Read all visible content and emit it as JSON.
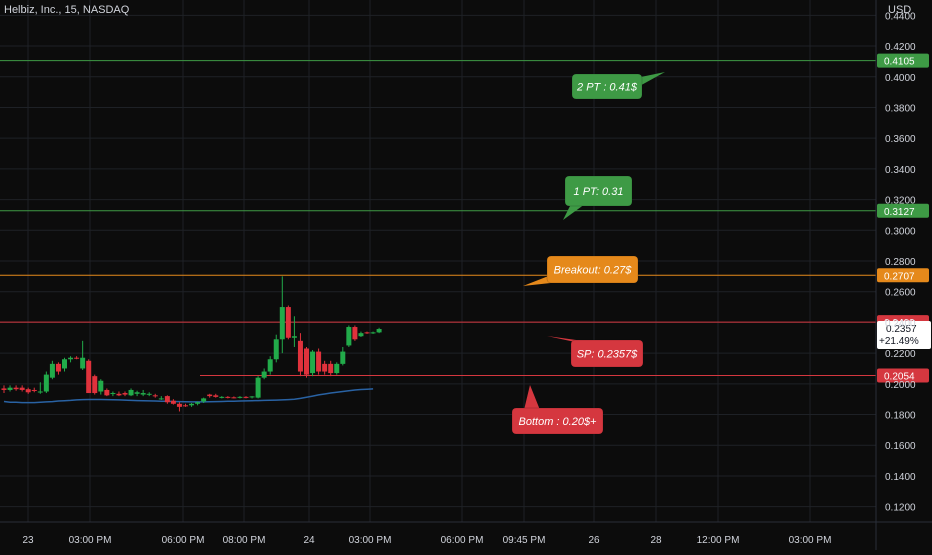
{
  "header": {
    "symbol": "Helbiz, Inc., 15, NASDAQ",
    "currency": "USD"
  },
  "colors": {
    "background": "#0c0c0c",
    "grid": "#1e2126",
    "up": "#22ab4a",
    "down": "#e0323c",
    "ma": "#2962a3",
    "green_line": "#3e9a45",
    "orange_line": "#e5891b",
    "red_line": "#d5373f",
    "text": "#d1d4dc"
  },
  "chart_data": {
    "type": "candlestick",
    "title": "Helbiz, Inc., 15, NASDAQ",
    "ylim": [
      0.11,
      0.45
    ],
    "grid": true,
    "y_ticks": [
      "0.4400",
      "0.4200",
      "0.4000",
      "0.3800",
      "0.3600",
      "0.3400",
      "0.3200",
      "0.3000",
      "0.2800",
      "0.2600",
      "0.2400",
      "0.2200",
      "0.2000",
      "0.1800",
      "0.1600",
      "0.1400",
      "0.1200"
    ],
    "x_ticks": [
      "23",
      "03:00 PM",
      "06:00 PM",
      "08:00 PM",
      "24",
      "03:00 PM",
      "06:00 PM",
      "09:45 PM",
      "26",
      "28",
      "12:00 PM",
      "03:00 PM"
    ],
    "candles": [
      {
        "o": 0.197,
        "h": 0.199,
        "l": 0.194,
        "c": 0.196
      },
      {
        "o": 0.196,
        "h": 0.199,
        "l": 0.195,
        "c": 0.1975
      },
      {
        "o": 0.1975,
        "h": 0.199,
        "l": 0.1955,
        "c": 0.1965
      },
      {
        "o": 0.1975,
        "h": 0.199,
        "l": 0.195,
        "c": 0.196
      },
      {
        "o": 0.1965,
        "h": 0.1975,
        "l": 0.1935,
        "c": 0.1945
      },
      {
        "o": 0.196,
        "h": 0.1975,
        "l": 0.1945,
        "c": 0.1955
      },
      {
        "o": 0.1945,
        "h": 0.201,
        "l": 0.1935,
        "c": 0.195
      },
      {
        "o": 0.195,
        "h": 0.208,
        "l": 0.194,
        "c": 0.206
      },
      {
        "o": 0.204,
        "h": 0.215,
        "l": 0.203,
        "c": 0.213
      },
      {
        "o": 0.213,
        "h": 0.214,
        "l": 0.206,
        "c": 0.208
      },
      {
        "o": 0.21,
        "h": 0.217,
        "l": 0.208,
        "c": 0.216
      },
      {
        "o": 0.216,
        "h": 0.218,
        "l": 0.214,
        "c": 0.217
      },
      {
        "o": 0.217,
        "h": 0.218,
        "l": 0.216,
        "c": 0.2165
      },
      {
        "o": 0.21,
        "h": 0.228,
        "l": 0.209,
        "c": 0.217
      },
      {
        "o": 0.215,
        "h": 0.216,
        "l": 0.194,
        "c": 0.194
      },
      {
        "o": 0.205,
        "h": 0.206,
        "l": 0.193,
        "c": 0.194
      },
      {
        "o": 0.195,
        "h": 0.203,
        "l": 0.193,
        "c": 0.202
      },
      {
        "o": 0.196,
        "h": 0.197,
        "l": 0.192,
        "c": 0.1925
      },
      {
        "o": 0.1935,
        "h": 0.195,
        "l": 0.192,
        "c": 0.194
      },
      {
        "o": 0.1935,
        "h": 0.195,
        "l": 0.192,
        "c": 0.1925
      },
      {
        "o": 0.194,
        "h": 0.195,
        "l": 0.192,
        "c": 0.193
      },
      {
        "o": 0.1925,
        "h": 0.197,
        "l": 0.192,
        "c": 0.196
      },
      {
        "o": 0.1935,
        "h": 0.1955,
        "l": 0.192,
        "c": 0.1945
      },
      {
        "o": 0.193,
        "h": 0.196,
        "l": 0.192,
        "c": 0.194
      },
      {
        "o": 0.193,
        "h": 0.1945,
        "l": 0.192,
        "c": 0.1935
      },
      {
        "o": 0.1925,
        "h": 0.1935,
        "l": 0.191,
        "c": 0.192
      },
      {
        "o": 0.19,
        "h": 0.192,
        "l": 0.1895,
        "c": 0.1905
      },
      {
        "o": 0.192,
        "h": 0.1925,
        "l": 0.187,
        "c": 0.188
      },
      {
        "o": 0.189,
        "h": 0.19,
        "l": 0.1865,
        "c": 0.187
      },
      {
        "o": 0.187,
        "h": 0.188,
        "l": 0.182,
        "c": 0.185
      },
      {
        "o": 0.186,
        "h": 0.187,
        "l": 0.185,
        "c": 0.1855
      },
      {
        "o": 0.186,
        "h": 0.1875,
        "l": 0.185,
        "c": 0.187
      },
      {
        "o": 0.187,
        "h": 0.1885,
        "l": 0.186,
        "c": 0.188
      },
      {
        "o": 0.1885,
        "h": 0.191,
        "l": 0.1875,
        "c": 0.1905
      },
      {
        "o": 0.193,
        "h": 0.1935,
        "l": 0.191,
        "c": 0.192
      },
      {
        "o": 0.1925,
        "h": 0.1935,
        "l": 0.191,
        "c": 0.1915
      },
      {
        "o": 0.191,
        "h": 0.192,
        "l": 0.1905,
        "c": 0.1915
      },
      {
        "o": 0.1915,
        "h": 0.192,
        "l": 0.1905,
        "c": 0.1912
      },
      {
        "o": 0.1912,
        "h": 0.1918,
        "l": 0.1905,
        "c": 0.191
      },
      {
        "o": 0.191,
        "h": 0.192,
        "l": 0.1905,
        "c": 0.1915
      },
      {
        "o": 0.1915,
        "h": 0.192,
        "l": 0.1905,
        "c": 0.1912
      },
      {
        "o": 0.1912,
        "h": 0.192,
        "l": 0.1905,
        "c": 0.1918
      },
      {
        "o": 0.191,
        "h": 0.205,
        "l": 0.1905,
        "c": 0.204
      },
      {
        "o": 0.204,
        "h": 0.21,
        "l": 0.203,
        "c": 0.208
      },
      {
        "o": 0.208,
        "h": 0.218,
        "l": 0.206,
        "c": 0.216
      },
      {
        "o": 0.216,
        "h": 0.232,
        "l": 0.214,
        "c": 0.229
      },
      {
        "o": 0.229,
        "h": 0.27,
        "l": 0.22,
        "c": 0.25
      },
      {
        "o": 0.25,
        "h": 0.251,
        "l": 0.229,
        "c": 0.23
      },
      {
        "o": 0.23,
        "h": 0.244,
        "l": 0.224,
        "c": 0.231
      },
      {
        "o": 0.228,
        "h": 0.233,
        "l": 0.205,
        "c": 0.208
      },
      {
        "o": 0.223,
        "h": 0.224,
        "l": 0.204,
        "c": 0.206
      },
      {
        "o": 0.207,
        "h": 0.222,
        "l": 0.205,
        "c": 0.221
      },
      {
        "o": 0.221,
        "h": 0.223,
        "l": 0.206,
        "c": 0.208
      },
      {
        "o": 0.213,
        "h": 0.215,
        "l": 0.206,
        "c": 0.208
      },
      {
        "o": 0.213,
        "h": 0.215,
        "l": 0.205,
        "c": 0.207
      },
      {
        "o": 0.207,
        "h": 0.214,
        "l": 0.206,
        "c": 0.213
      },
      {
        "o": 0.213,
        "h": 0.224,
        "l": 0.212,
        "c": 0.221
      },
      {
        "o": 0.225,
        "h": 0.238,
        "l": 0.224,
        "c": 0.237
      },
      {
        "o": 0.237,
        "h": 0.238,
        "l": 0.228,
        "c": 0.229
      },
      {
        "o": 0.231,
        "h": 0.234,
        "l": 0.2305,
        "c": 0.233
      },
      {
        "o": 0.2335,
        "h": 0.234,
        "l": 0.2325,
        "c": 0.233
      },
      {
        "o": 0.233,
        "h": 0.234,
        "l": 0.2325,
        "c": 0.2335
      },
      {
        "o": 0.2335,
        "h": 0.2365,
        "l": 0.233,
        "c": 0.2357
      }
    ],
    "moving_average": [
      [
        0.1885,
        0.188,
        0.188,
        0.1878,
        0.1878,
        0.1878,
        0.188,
        0.1882,
        0.1884,
        0.1888
      ],
      [
        0.189,
        0.1892,
        0.1895,
        0.1897,
        0.1898,
        0.1898,
        0.1898,
        0.1897,
        0.1896,
        0.1895
      ],
      [
        0.1894,
        0.1892,
        0.1891,
        0.189,
        0.1889,
        0.1888,
        0.1887,
        0.1886,
        0.1885,
        0.1884
      ],
      [
        0.1883,
        0.1882,
        0.1882,
        0.1882,
        0.1883,
        0.1884,
        0.1885,
        0.1886,
        0.1887,
        0.1888
      ],
      [
        0.1889,
        0.189,
        0.1891,
        0.1892,
        0.1893,
        0.1894,
        0.1895,
        0.1897,
        0.19,
        0.1905
      ],
      [
        0.1912,
        0.192,
        0.1928,
        0.1934,
        0.194,
        0.1945,
        0.195,
        0.1955,
        0.196,
        0.1963
      ],
      [
        0.1965,
        0.1967
      ]
    ],
    "levels": [
      {
        "price": 0.4105,
        "label": "0.4105",
        "color": "#3e9a45"
      },
      {
        "price": 0.3127,
        "label": "0.3127",
        "color": "#3e9a45"
      },
      {
        "price": 0.2707,
        "label": "0.2707",
        "color": "#e5891b"
      },
      {
        "price": 0.2402,
        "label": "0.2402",
        "color": "#d5373f"
      },
      {
        "price": 0.2054,
        "label": "0.2054",
        "color": "#d5373f"
      }
    ],
    "current_price": {
      "value": "0.2357",
      "change": "+21.49%"
    },
    "callouts": [
      {
        "text": "2 PT : 0.41$",
        "color": "#3e9a45",
        "anchor": "levels.0"
      },
      {
        "text": "1 PT: 0.31",
        "color": "#3e9a45",
        "anchor": "levels.1"
      },
      {
        "text": "Breakout: 0.27$",
        "color": "#e5891b",
        "anchor": "levels.2"
      },
      {
        "text": "SP: 0.2357$",
        "color": "#d5373f",
        "anchor": "levels.3"
      },
      {
        "text": "Bottom : 0.20$+",
        "color": "#d5373f",
        "anchor": "levels.4"
      }
    ]
  }
}
